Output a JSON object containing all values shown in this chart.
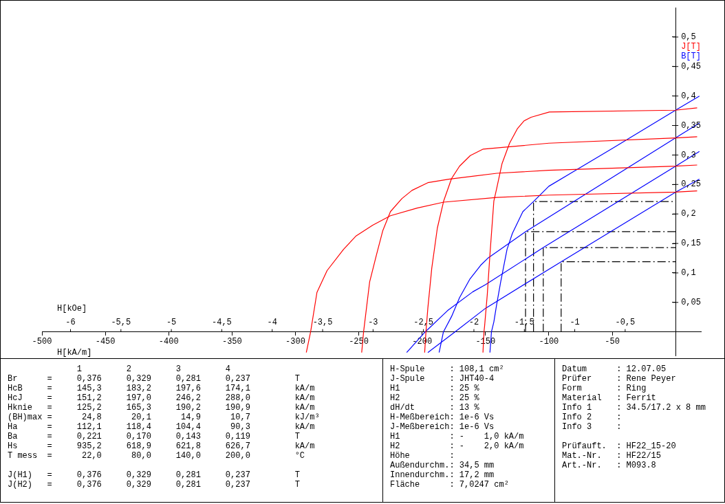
{
  "chart_data": {
    "type": "line",
    "xlabel": "H[kA/m]",
    "x2label": "H[kOe]",
    "xlim": [
      -500,
      20
    ],
    "xticks": [
      -500,
      -450,
      -400,
      -350,
      -300,
      -250,
      -200,
      -150,
      -100,
      -50
    ],
    "x2lim": [
      -6.283,
      0.251
    ],
    "x2ticks": [
      -6,
      {
        "value": -5.5,
        "label": "-5,5"
      },
      -5,
      {
        "value": -4.5,
        "label": "-4,5"
      },
      -4,
      {
        "value": -3.5,
        "label": "-3,5"
      },
      -3,
      {
        "value": -2.5,
        "label": "-2,5"
      },
      -2,
      {
        "value": -1.5,
        "label": "-1,5"
      },
      -1,
      {
        "value": -0.5,
        "label": "-0,5"
      }
    ],
    "ylim": [
      -0.04,
      0.55
    ],
    "yticks": [
      {
        "value": 0.05,
        "label": "0,05"
      },
      {
        "value": 0.1,
        "label": "0,1"
      },
      {
        "value": 0.15,
        "label": "0,15"
      },
      {
        "value": 0.2,
        "label": "0,2"
      },
      {
        "value": 0.25,
        "label": "0,25"
      },
      {
        "value": 0.3,
        "label": "0,3"
      },
      {
        "value": 0.35,
        "label": "0,35"
      },
      {
        "value": 0.4,
        "label": "0,4"
      },
      {
        "value": 0.45,
        "label": "0,45"
      },
      {
        "value": 0.5,
        "label": "0,5"
      }
    ],
    "grid": false,
    "legend": "top right",
    "marker": "none",
    "line_style": "solid",
    "series": [
      {
        "name": "J[T]",
        "color": "#ff0000",
        "x": [
          -152,
          -151.2,
          -150.7,
          -148.6,
          -146.5,
          -143.4,
          -141,
          -137,
          -131,
          -124.7,
          -119.5,
          -114,
          -99.6,
          0,
          17
        ],
        "values": [
          -0.035,
          0,
          0.01,
          0.063,
          0.131,
          0.222,
          0.245,
          0.285,
          0.32,
          0.345,
          0.358,
          0.364,
          0.373,
          0.376,
          0.38
        ]
      },
      {
        "color": "#ff0000",
        "x": [
          -198,
          -197,
          -195.5,
          -192.4,
          -188,
          -183,
          -176.8,
          -170.5,
          -162,
          -151.8,
          -100,
          0,
          17
        ],
        "values": [
          -0.035,
          0,
          0.04,
          0.108,
          0.176,
          0.222,
          0.26,
          0.281,
          0.299,
          0.31,
          0.32,
          0.329,
          0.331
        ]
      },
      {
        "color": "#ff0000",
        "x": [
          -247.7,
          -246.2,
          -241.4,
          -236,
          -231,
          -225,
          -216,
          -208,
          -195.5,
          -179,
          -141,
          -100,
          0,
          17
        ],
        "values": [
          -0.035,
          0,
          0.085,
          0.131,
          0.172,
          0.204,
          0.226,
          0.24,
          0.253,
          0.259,
          0.269,
          0.274,
          0.281,
          0.283
        ]
      },
      {
        "color": "#ff0000",
        "x": [
          -291.4,
          -288,
          -283,
          -275,
          -262,
          -252,
          -239,
          -225,
          -204,
          -183,
          -141,
          -100,
          0,
          17
        ],
        "values": [
          -0.035,
          0,
          0.067,
          0.104,
          0.14,
          0.163,
          0.181,
          0.197,
          0.21,
          0.22,
          0.228,
          0.232,
          0.237,
          0.239
        ]
      },
      {
        "name": "B[T]",
        "color": "#0000ff",
        "x": [
          -146.5,
          -145.3,
          -143.4,
          -141.3,
          -138,
          -133,
          -128.8,
          -120.5,
          -112.1,
          -100,
          -50,
          0,
          18.8
        ],
        "values": [
          -0.035,
          0,
          0.017,
          0.045,
          0.085,
          0.14,
          0.167,
          0.204,
          0.221,
          0.247,
          0.311,
          0.376,
          0.4
        ]
      },
      {
        "color": "#0000ff",
        "x": [
          -186.6,
          -183.2,
          -176.8,
          -170.5,
          -162.2,
          -153.8,
          -147.6,
          -118.4,
          0,
          18.8
        ],
        "values": [
          -0.035,
          0,
          0.026,
          0.058,
          0.09,
          0.113,
          0.126,
          0.17,
          0.329,
          0.354
        ]
      },
      {
        "color": "#0000ff",
        "x": [
          -212.2,
          -197.6,
          -180,
          -160,
          -150,
          -104.4,
          0,
          18.8
        ],
        "values": [
          -0.035,
          0,
          0.036,
          0.068,
          0.08,
          0.143,
          0.281,
          0.306
        ]
      },
      {
        "color": "#0000ff",
        "x": [
          -195.5,
          -174.1,
          -150,
          -90.3,
          0,
          18.8
        ],
        "values": [
          -0.035,
          0,
          0.04,
          0.119,
          0.237,
          0.259
        ]
      },
      {
        "color": "#000000",
        "line_style": "dashed",
        "x": [
          -112.1,
          -112.1,
          0
        ],
        "values": [
          0,
          0.221,
          0.221
        ]
      },
      {
        "color": "#000000",
        "line_style": "dashed",
        "x": [
          -118.4,
          -118.4,
          0
        ],
        "values": [
          0,
          0.17,
          0.17
        ]
      },
      {
        "color": "#000000",
        "line_style": "dashed",
        "x": [
          -104.4,
          -104.4,
          0
        ],
        "values": [
          0,
          0.143,
          0.143
        ]
      },
      {
        "color": "#000000",
        "line_style": "dashed",
        "x": [
          -90.3,
          -90.3,
          0
        ],
        "values": [
          0,
          0.119,
          0.119
        ]
      }
    ],
    "annotations": [
      "              1         2         3         4",
      "Br      =     0,376     0,329     0,281     0,237         T",
      "HcB     =     145,3     183,2     197,6     174,1         kA/m",
      "HcJ     =     151,2     197,0     246,2     288,0         kA/m",
      "Hknie   =     125,2     165,3     190,2     190,9         kA/m",
      "(BH)max =      24,8      20,1      14,9      10,7         kJ/m³",
      "Ha      =     112,1     118,4     104,4      90,3         kA/m",
      "Ba      =     0,221     0,170     0,143     0,119         T",
      "Hs      =     935,2     618,9     621,8     626,7         kA/m",
      "T mess  =      22,0      80,0     140,0     200,0         °C",
      "J(H1)   =     0,376     0,329     0,281     0,237         T",
      "J(H2)   =     0,376     0,329     0,281     0,237         T",
      "H-Spule     : 108,1 cm²",
      "J-Spule     : JHT40-4",
      "H1          : 25 %",
      "H2          : 25 %",
      "dH/dt       : 13 %",
      "H-Meßbereich: 1e-6 Vs",
      "J-Meßbereich: 1e-6 Vs",
      "H1          : -    1,0 kA/m",
      "H2          : -    2,0 kA/m",
      "Höhe        :",
      "Außendurchm.: 34,5 mm",
      "Innendurchm.: 17,2 mm",
      "Fläche      : 7,0247 cm²",
      "Datum      : 12.07.05",
      "Prüfer     : Rene Peyer",
      "Form       : Ring",
      "Material   : Ferrit",
      "Info 1     : 34.5/17.2 x 8 mm",
      "Info 2     :",
      "Info 3     :",
      "Prüfauft.  : HF22_15-20",
      "Mat.-Nr.   : HF22/15",
      "Art.-Nr.   : M093.8"
    ]
  }
}
